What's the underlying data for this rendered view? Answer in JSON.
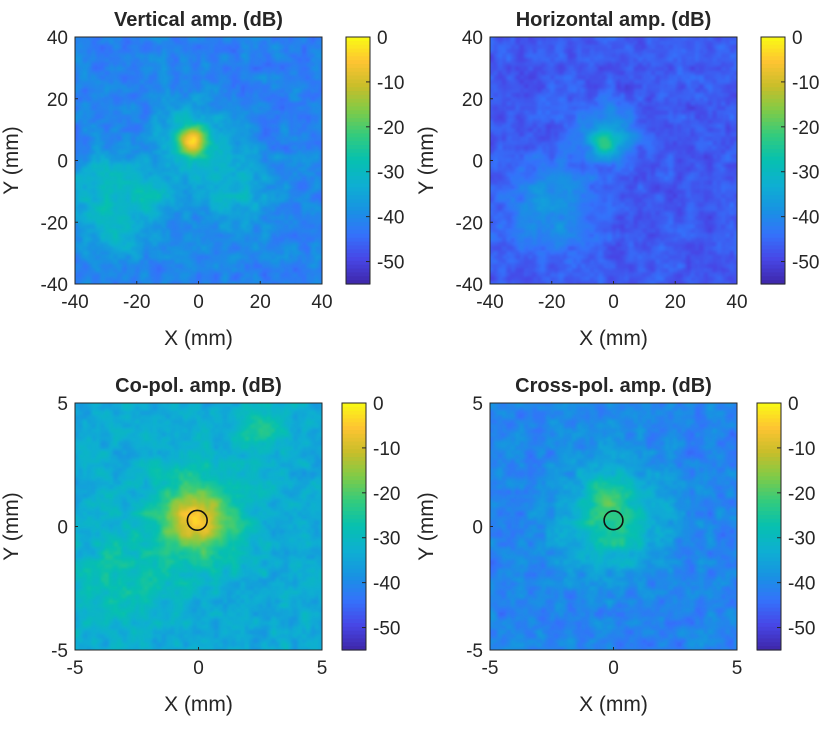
{
  "chart_data": [
    {
      "type": "heatmap",
      "title": "Vertical amp. (dB)",
      "xlabel": "X (mm)",
      "ylabel": "Y (mm)",
      "xlim": [
        -40,
        40
      ],
      "ylim": [
        -40,
        40
      ],
      "xticks": [
        "-40",
        "-20",
        "0",
        "20",
        "40"
      ],
      "yticks": [
        "40",
        "20",
        "0",
        "-20",
        "-40"
      ],
      "colorbar": {
        "range": [
          -55,
          0
        ],
        "ticks": [
          "0",
          "-10",
          "-20",
          "-30",
          "-40",
          "-50"
        ],
        "colormap": "parula"
      },
      "background_db": -41,
      "noise_db": 5,
      "features": [
        {
          "x": -2,
          "y": 6,
          "sigma": 2.2,
          "peak_db": -5
        },
        {
          "x": -2,
          "y": 6,
          "sigma": 7,
          "peak_db": -30
        },
        {
          "x": -30,
          "y": -10,
          "sigma": 7,
          "peak_db": -33
        },
        {
          "x": -15,
          "y": -11,
          "sigma": 5,
          "peak_db": -34
        },
        {
          "x": -26,
          "y": -22,
          "sigma": 6,
          "peak_db": -35
        },
        {
          "x": 12,
          "y": -10,
          "sigma": 8,
          "peak_db": -36
        }
      ]
    },
    {
      "type": "heatmap",
      "title": "Horizontal amp. (dB)",
      "xlabel": "X (mm)",
      "ylabel": "Y (mm)",
      "xlim": [
        -40,
        40
      ],
      "ylim": [
        -40,
        40
      ],
      "xticks": [
        "-40",
        "-20",
        "0",
        "20",
        "40"
      ],
      "yticks": [
        "40",
        "20",
        "0",
        "-20",
        "-40"
      ],
      "colorbar": {
        "range": [
          -55,
          0
        ],
        "ticks": [
          "0",
          "-10",
          "-20",
          "-30",
          "-40",
          "-50"
        ],
        "colormap": "parula"
      },
      "background_db": -47,
      "noise_db": 4,
      "features": [
        {
          "x": -3,
          "y": 6,
          "sigma": 2,
          "peak_db": -24
        },
        {
          "x": -2,
          "y": 8,
          "sigma": 5,
          "peak_db": -36
        },
        {
          "x": -20,
          "y": -15,
          "sigma": 9,
          "peak_db": -42
        }
      ]
    },
    {
      "type": "heatmap",
      "title": "Co-pol. amp. (dB)",
      "xlabel": "X (mm)",
      "ylabel": "Y (mm)",
      "xlim": [
        -5,
        5
      ],
      "ylim": [
        -5,
        5
      ],
      "xticks": [
        "-5",
        "0",
        "5"
      ],
      "yticks": [
        "5",
        "0",
        "-5"
      ],
      "colorbar": {
        "range": [
          -55,
          0
        ],
        "ticks": [
          "0",
          "-10",
          "-20",
          "-30",
          "-40",
          "-50"
        ],
        "colormap": "parula"
      },
      "background_db": -34,
      "noise_db": 5,
      "contour": {
        "x": -0.05,
        "y": 0.25,
        "r": 0.4
      },
      "features": [
        {
          "x": -0.1,
          "y": 0.3,
          "sigma": 0.55,
          "peak_db": -7
        },
        {
          "x": -0.1,
          "y": 0.3,
          "sigma": 1.2,
          "peak_db": -22
        },
        {
          "x": 2.5,
          "y": 4.0,
          "sigma": 0.7,
          "peak_db": -30
        },
        {
          "x": -3.0,
          "y": -2.0,
          "sigma": 1.2,
          "peak_db": -32
        }
      ]
    },
    {
      "type": "heatmap",
      "title": "Cross-pol. amp. (dB)",
      "xlabel": "X (mm)",
      "ylabel": "Y (mm)",
      "xlim": [
        -5,
        5
      ],
      "ylim": [
        -5,
        5
      ],
      "xticks": [
        "-5",
        "0",
        "5"
      ],
      "yticks": [
        "5",
        "0",
        "-5"
      ],
      "colorbar": {
        "range": [
          -55,
          0
        ],
        "ticks": [
          "0",
          "-10",
          "-20",
          "-30",
          "-40",
          "-50"
        ],
        "colormap": "parula"
      },
      "background_db": -41,
      "noise_db": 5,
      "contour": {
        "x": 0.0,
        "y": 0.25,
        "r": 0.38
      },
      "features": [
        {
          "x": -0.3,
          "y": 1.3,
          "sigma": 0.45,
          "peak_db": -24
        },
        {
          "x": -0.1,
          "y": 0.0,
          "sigma": 0.7,
          "peak_db": -28
        },
        {
          "x": 0.0,
          "y": 0.5,
          "sigma": 1.5,
          "peak_db": -34
        }
      ]
    }
  ]
}
